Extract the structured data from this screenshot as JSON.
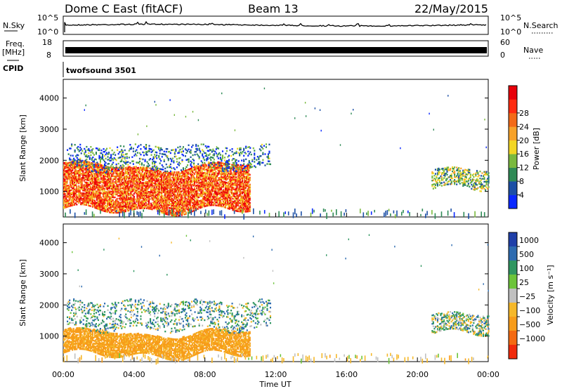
{
  "header": {
    "radar": "Dome C East (fitACF)",
    "beam": "Beam 13",
    "date": "22/May/2015"
  },
  "strips": {
    "nsky_label": "N.Sky",
    "nsky_ticks": [
      "10^5",
      "10^0"
    ],
    "nsearch_label": "N.Search",
    "nsearch_ticks": [
      "10^5",
      "10^0"
    ],
    "freq_label_1": "Freq.",
    "freq_label_2": "[MHz]",
    "freq_ticks": [
      "18",
      "8"
    ],
    "nave_label": "Nave",
    "nave_ticks": [
      "60",
      "0"
    ],
    "cpid_label": "CPID",
    "cpid_value": "twofsound 3501"
  },
  "axes": {
    "ylabel": "Slant Range [km]",
    "xlabel": "Time UT",
    "yticks": [
      "1000",
      "2000",
      "3000",
      "4000"
    ],
    "xticks": [
      "00:00",
      "04:00",
      "08:00",
      "12:00",
      "16:00",
      "20:00",
      "00:00"
    ]
  },
  "power_colorbar": {
    "label": "Power [dB]",
    "ticks": [
      "4",
      "8",
      "12",
      "16",
      "20",
      "24",
      "28"
    ],
    "colors": [
      "#0a28ff",
      "#1c4fa6",
      "#2f8a56",
      "#7ab93e",
      "#f2d624",
      "#f7a229",
      "#f36a17",
      "#ff2b10",
      "#e8000a"
    ]
  },
  "velocity_colorbar": {
    "label": "Velocity [m s⁻¹]",
    "ticks": [
      "1000",
      "500",
      "100",
      "25",
      "−25",
      "−100",
      "−500",
      "−1000"
    ],
    "colors": [
      "#1f3fa8",
      "#2d6bb0",
      "#2f9660",
      "#6cc43a",
      "#c0c0c0",
      "#f5b82a",
      "#f79c1a",
      "#f46a12",
      "#f02a0c"
    ]
  },
  "chart_data": [
    {
      "type": "heatmap",
      "title": "Power",
      "xlabel": "Time UT",
      "ylabel": "Slant Range [km]",
      "x_range_hours": [
        0,
        24
      ],
      "y_range_km": [
        180,
        4600
      ],
      "colorbar_label": "Power [dB]",
      "colorbar_ticks": [
        4,
        8,
        12,
        16,
        20,
        24,
        28
      ],
      "regions": [
        {
          "t_start": 0.0,
          "t_end": 10.5,
          "range_min": 450,
          "range_max": 1900,
          "value_db": 27
        },
        {
          "t_start": 0.2,
          "t_end": 11.7,
          "range_min": 1700,
          "range_max": 2450,
          "value_db": 8
        },
        {
          "t_start": 20.8,
          "t_end": 24.0,
          "range_min": 1100,
          "range_max": 1700,
          "value_db": 14
        }
      ]
    },
    {
      "type": "heatmap",
      "title": "Velocity",
      "xlabel": "Time UT",
      "ylabel": "Slant Range [km]",
      "x_range_hours": [
        0,
        24
      ],
      "y_range_km": [
        180,
        4600
      ],
      "colorbar_label": "Velocity [m s⁻¹]",
      "colorbar_ticks": [
        1000,
        500,
        100,
        25,
        -25,
        -100,
        -500,
        -1000
      ],
      "regions": [
        {
          "t_start": 0.0,
          "t_end": 10.5,
          "range_min": 450,
          "range_max": 1200,
          "value_ms": -150
        },
        {
          "t_start": 0.2,
          "t_end": 11.7,
          "range_min": 1200,
          "range_max": 2100,
          "value_ms": 60
        },
        {
          "t_start": 20.8,
          "t_end": 24.0,
          "range_min": 1100,
          "range_max": 1700,
          "value_ms": 20
        }
      ]
    }
  ]
}
